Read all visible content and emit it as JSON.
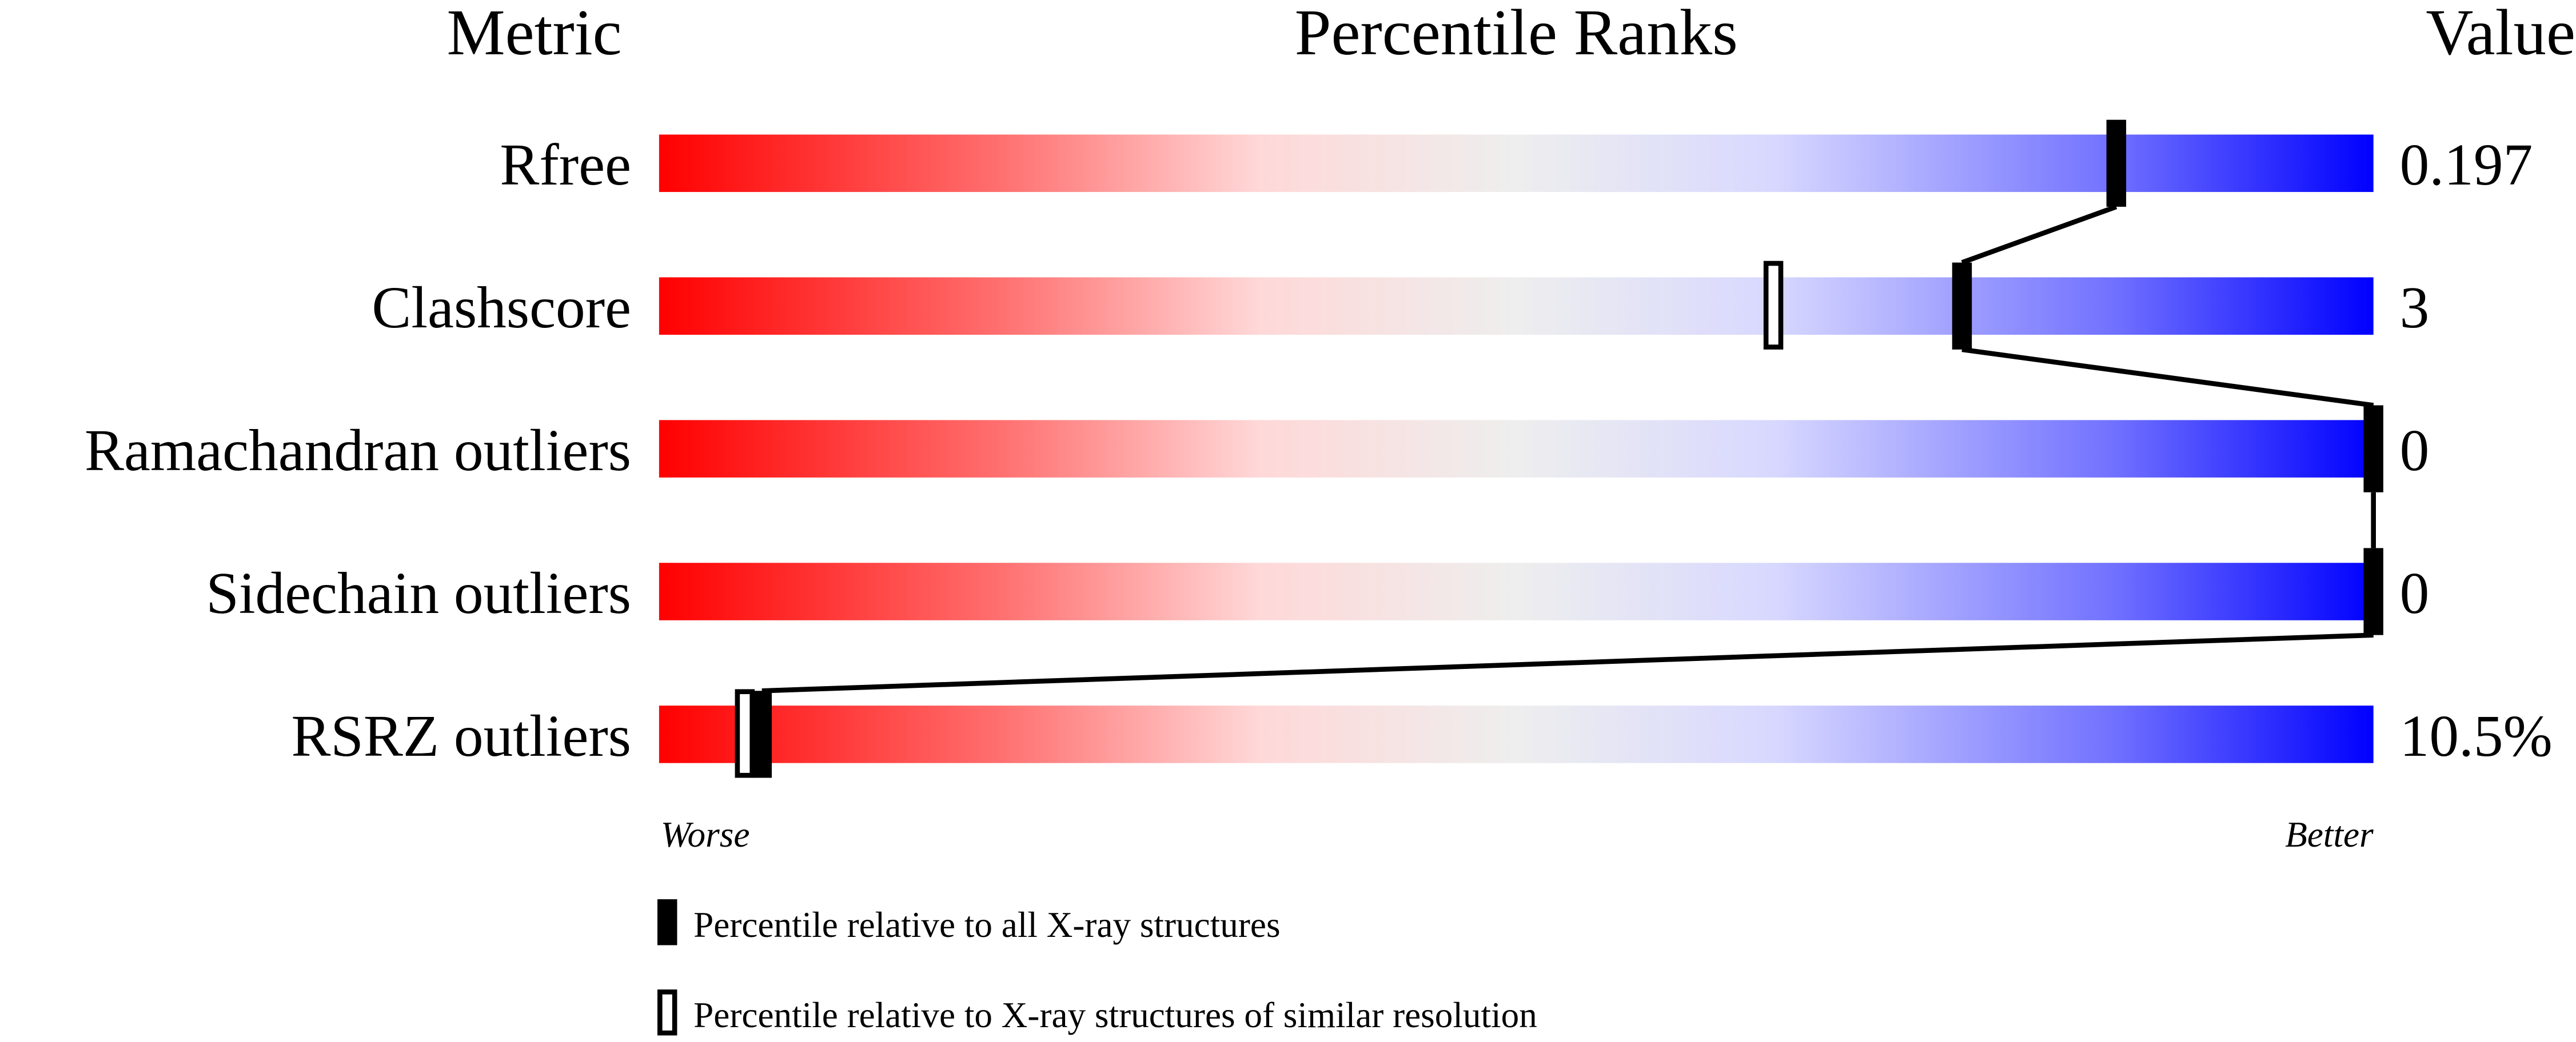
{
  "chart_data": {
    "type": "percentile-slider",
    "headers": {
      "metric": "Metric",
      "ranks": "Percentile Ranks",
      "value": "Value"
    },
    "xlim": [
      0,
      100
    ],
    "axis_labels": {
      "left": "Worse",
      "right": "Better"
    },
    "rows": [
      {
        "metric": "Rfree",
        "value": "0.197",
        "percentile_all": 85,
        "percentile_similar": null
      },
      {
        "metric": "Clashscore",
        "value": "3",
        "percentile_all": 76,
        "percentile_similar": 65
      },
      {
        "metric": "Ramachandran outliers",
        "value": "0",
        "percentile_all": 100,
        "percentile_similar": null
      },
      {
        "metric": "Sidechain outliers",
        "value": "0",
        "percentile_all": 100,
        "percentile_similar": null
      },
      {
        "metric": "RSRZ outliers",
        "value": "10.5%",
        "percentile_all": 6,
        "percentile_similar": 5
      }
    ],
    "legend": {
      "all": "Percentile relative to all X-ray structures",
      "similar": "Percentile relative to X-ray structures of similar resolution"
    },
    "gradient_colors": [
      "#ff0000",
      "#ff7070",
      "#ffd8d8",
      "#eeeeee",
      "#d8d8ff",
      "#7070ff",
      "#0000ff"
    ]
  }
}
